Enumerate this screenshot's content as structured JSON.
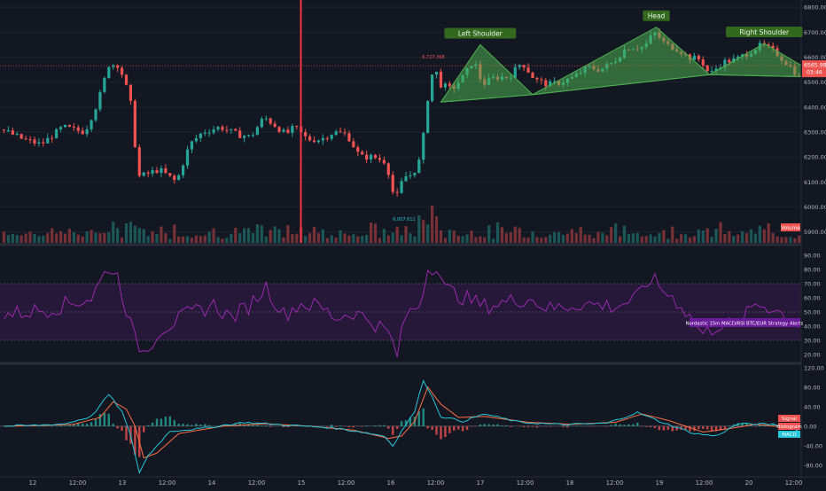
{
  "chart_data": [
    {
      "type": "candlestick",
      "panel": "price",
      "y_ticks": [
        6800,
        6700,
        6600,
        6500,
        6400,
        6300,
        6200,
        6100,
        6000,
        5900
      ],
      "y_tick_labels": [
        "6800.00",
        "6700.00",
        "6600.00",
        "6500.00",
        "6400.00",
        "6300.00",
        "6200.00",
        "6100.00",
        "6000.00",
        "5900.00"
      ],
      "ylim": [
        5870,
        6815
      ],
      "ohlc_keypoints": [
        [
          0,
          6310
        ],
        [
          5,
          6270
        ],
        [
          9,
          6250
        ],
        [
          14,
          6320
        ],
        [
          19,
          6300
        ],
        [
          22,
          6420
        ],
        [
          24.5,
          6570
        ],
        [
          26.8,
          6570
        ],
        [
          28.5,
          6480
        ],
        [
          30,
          6380
        ],
        [
          31,
          6120
        ],
        [
          33,
          6130
        ],
        [
          36,
          6150
        ],
        [
          40,
          6100
        ],
        [
          43,
          6250
        ],
        [
          46,
          6300
        ],
        [
          50,
          6320
        ],
        [
          54,
          6290
        ],
        [
          57,
          6280
        ],
        [
          60,
          6360
        ],
        [
          63,
          6320
        ],
        [
          65,
          6290
        ],
        [
          67,
          6320
        ],
        [
          70,
          6270
        ],
        [
          73,
          6270
        ],
        [
          76,
          6300
        ],
        [
          79,
          6290
        ],
        [
          82,
          6200
        ],
        [
          85,
          6200
        ],
        [
          88,
          6180
        ],
        [
          90,
          6020
        ],
        [
          92,
          6120
        ],
        [
          94,
          6130
        ],
        [
          96,
          6200
        ],
        [
          97,
          6370
        ],
        [
          98,
          6500
        ],
        [
          99,
          6560
        ],
        [
          100.5,
          6490
        ],
        [
          103,
          6470
        ],
        [
          106,
          6530
        ],
        [
          108,
          6590
        ],
        [
          110,
          6490
        ],
        [
          113,
          6520
        ],
        [
          116,
          6520
        ],
        [
          119,
          6580
        ],
        [
          122,
          6510
        ],
        [
          125,
          6490
        ],
        [
          128,
          6500
        ],
        [
          131,
          6520
        ],
        [
          134,
          6560
        ],
        [
          137,
          6550
        ],
        [
          140,
          6580
        ],
        [
          143,
          6640
        ],
        [
          147,
          6640
        ],
        [
          149.3,
          6700
        ],
        [
          152,
          6650
        ],
        [
          155,
          6630
        ],
        [
          157,
          6600
        ],
        [
          160,
          6590
        ],
        [
          162,
          6530
        ],
        [
          165,
          6580
        ],
        [
          168,
          6590
        ],
        [
          171,
          6620
        ],
        [
          174,
          6650
        ],
        [
          177,
          6620
        ],
        [
          180,
          6570
        ],
        [
          182.5,
          6520
        ]
      ],
      "markers": [
        {
          "label": "6,727.368",
          "kind": "high"
        },
        {
          "label": "6,007.611",
          "kind": "low"
        }
      ],
      "current_price": "6565.98",
      "countdown": "03:46",
      "pattern": {
        "name": "head-and-shoulders",
        "labels": [
          "Left Shoulder",
          "Head",
          "Right Shoulder"
        ],
        "points": [
          [
            100,
            6420
          ],
          [
            109,
            6650
          ],
          [
            121,
            6450
          ],
          [
            149.3,
            6720
          ],
          [
            161.5,
            6530
          ],
          [
            174,
            6655
          ],
          [
            187,
            6520
          ]
        ]
      },
      "volume_label": "Volume"
    },
    {
      "type": "line",
      "panel": "rsi",
      "y_ticks": [
        90,
        80,
        70,
        60,
        50,
        40,
        30,
        20
      ],
      "y_tick_labels": [
        "90.00",
        "80.00",
        "70.00",
        "60.00",
        "50.00",
        "40.00",
        "30.00",
        "20.00"
      ],
      "band": [
        30,
        70
      ],
      "ylim": [
        15,
        95
      ],
      "study_label": "Nordastic 15m MACD/RSI BTC/EUR Strategy Alerts",
      "keypoints": [
        [
          0,
          48
        ],
        [
          10,
          52
        ],
        [
          20,
          60
        ],
        [
          24,
          82
        ],
        [
          26,
          75
        ],
        [
          30,
          30
        ],
        [
          32,
          22
        ],
        [
          36,
          38
        ],
        [
          42,
          48
        ],
        [
          48,
          55
        ],
        [
          52,
          46
        ],
        [
          56,
          54
        ],
        [
          60,
          68
        ],
        [
          64,
          48
        ],
        [
          68,
          56
        ],
        [
          72,
          54
        ],
        [
          76,
          46
        ],
        [
          80,
          50
        ],
        [
          84,
          44
        ],
        [
          88,
          35
        ],
        [
          90,
          20
        ],
        [
          92,
          48
        ],
        [
          95,
          55
        ],
        [
          97,
          80
        ],
        [
          99,
          84
        ],
        [
          101,
          66
        ],
        [
          104,
          62
        ],
        [
          110,
          54
        ],
        [
          120,
          60
        ],
        [
          125,
          52
        ],
        [
          132,
          56
        ],
        [
          140,
          54
        ],
        [
          145,
          60
        ],
        [
          148,
          74
        ],
        [
          150,
          68
        ],
        [
          155,
          55
        ],
        [
          160,
          34
        ],
        [
          164,
          42
        ],
        [
          168,
          40
        ],
        [
          172,
          56
        ],
        [
          176,
          53
        ],
        [
          182.5,
          40
        ]
      ]
    },
    {
      "type": "line",
      "panel": "macd",
      "y_ticks": [
        120,
        80,
        40,
        0,
        -40,
        -80
      ],
      "y_tick_labels": [
        "120.00",
        "80.00",
        "40.00",
        "0.00",
        "-40.00",
        "-80.00"
      ],
      "ylim": [
        -100,
        125
      ],
      "labels": [
        "Signal",
        "Histogram",
        "MACD"
      ],
      "macd_keypoints": [
        [
          0,
          0
        ],
        [
          8,
          2
        ],
        [
          14,
          5
        ],
        [
          20,
          20
        ],
        [
          24,
          65
        ],
        [
          27,
          30
        ],
        [
          29,
          -20
        ],
        [
          31,
          -95
        ],
        [
          33,
          -60
        ],
        [
          38,
          -10
        ],
        [
          45,
          -5
        ],
        [
          55,
          8
        ],
        [
          65,
          2
        ],
        [
          75,
          -3
        ],
        [
          82,
          -12
        ],
        [
          87,
          -20
        ],
        [
          89,
          -40
        ],
        [
          91,
          -10
        ],
        [
          94,
          30
        ],
        [
          96,
          95
        ],
        [
          98,
          60
        ],
        [
          100,
          20
        ],
        [
          105,
          10
        ],
        [
          110,
          25
        ],
        [
          118,
          8
        ],
        [
          128,
          3
        ],
        [
          138,
          6
        ],
        [
          145,
          28
        ],
        [
          150,
          10
        ],
        [
          158,
          -15
        ],
        [
          163,
          -20
        ],
        [
          168,
          5
        ],
        [
          176,
          4
        ],
        [
          182.5,
          -10
        ]
      ],
      "signal_keypoints": [
        [
          0,
          0
        ],
        [
          10,
          2
        ],
        [
          16,
          4
        ],
        [
          22,
          18
        ],
        [
          25,
          50
        ],
        [
          28,
          35
        ],
        [
          30,
          0
        ],
        [
          32,
          -65
        ],
        [
          35,
          -55
        ],
        [
          40,
          -15
        ],
        [
          50,
          0
        ],
        [
          60,
          5
        ],
        [
          70,
          0
        ],
        [
          80,
          -8
        ],
        [
          88,
          -25
        ],
        [
          91,
          -20
        ],
        [
          94,
          10
        ],
        [
          97,
          80
        ],
        [
          100,
          45
        ],
        [
          104,
          18
        ],
        [
          110,
          20
        ],
        [
          120,
          8
        ],
        [
          130,
          4
        ],
        [
          140,
          8
        ],
        [
          146,
          25
        ],
        [
          152,
          12
        ],
        [
          160,
          -12
        ],
        [
          166,
          -5
        ],
        [
          172,
          4
        ],
        [
          182.5,
          -5
        ]
      ]
    }
  ],
  "x_axis": {
    "labels": [
      "12",
      "12:00",
      "13",
      "12:00",
      "14",
      "12:00",
      "15",
      "12:00",
      "16",
      "12:00",
      "17",
      "12:00",
      "18",
      "12:00",
      "19",
      "12:00",
      "20",
      "12:00"
    ]
  },
  "colors": {
    "background": "#131722",
    "up": "#26a69a",
    "down": "#ef5350",
    "rsi": "#9c27b0",
    "rsi_band": "#7b1fa2",
    "pattern_fill": "#4caf50",
    "pattern_label_bg": "#33691e",
    "vertical_marker": "#f23645",
    "macd_line": "#26c6da",
    "signal_line": "#ff7043",
    "axis_text": "#b2b5be",
    "grid": "#1e222d"
  }
}
